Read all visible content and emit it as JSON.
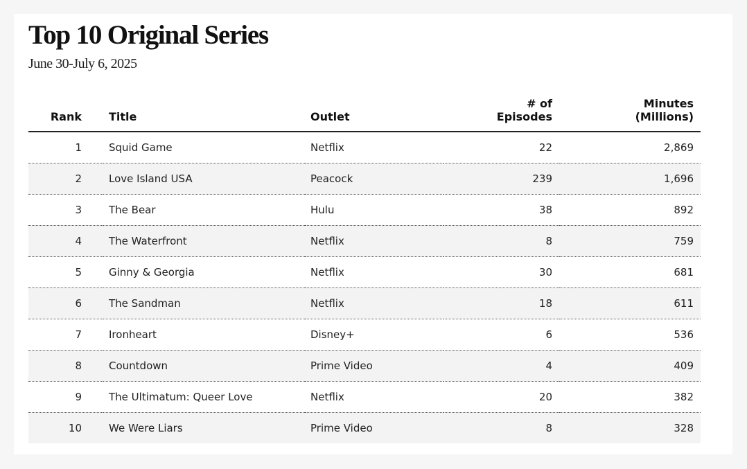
{
  "chart_data": {
    "type": "table",
    "title": "Top 10 Original Series",
    "subtitle": "June 30-July 6, 2025",
    "columns": {
      "rank": "Rank",
      "title": "Title",
      "outlet": "Outlet",
      "episodes": [
        "# of",
        "Episodes"
      ],
      "minutes": [
        "Minutes",
        "(Millions)"
      ]
    },
    "rows": [
      {
        "rank": "1",
        "title": "Squid Game",
        "outlet": "Netflix",
        "episodes": "22",
        "minutes": "2,869"
      },
      {
        "rank": "2",
        "title": "Love Island USA",
        "outlet": "Peacock",
        "episodes": "239",
        "minutes": "1,696"
      },
      {
        "rank": "3",
        "title": "The Bear",
        "outlet": "Hulu",
        "episodes": "38",
        "minutes": "892"
      },
      {
        "rank": "4",
        "title": "The Waterfront",
        "outlet": "Netflix",
        "episodes": "8",
        "minutes": "759"
      },
      {
        "rank": "5",
        "title": "Ginny & Georgia",
        "outlet": "Netflix",
        "episodes": "30",
        "minutes": "681"
      },
      {
        "rank": "6",
        "title": "The Sandman",
        "outlet": "Netflix",
        "episodes": "18",
        "minutes": "611"
      },
      {
        "rank": "7",
        "title": "Ironheart",
        "outlet": "Disney+",
        "episodes": "6",
        "minutes": "536"
      },
      {
        "rank": "8",
        "title": "Countdown",
        "outlet": "Prime Video",
        "episodes": "4",
        "minutes": "409"
      },
      {
        "rank": "9",
        "title": "The Ultimatum: Queer Love",
        "outlet": "Netflix",
        "episodes": "20",
        "minutes": "382"
      },
      {
        "rank": "10",
        "title": "We Were Liars",
        "outlet": "Prime Video",
        "episodes": "8",
        "minutes": "328"
      }
    ]
  }
}
